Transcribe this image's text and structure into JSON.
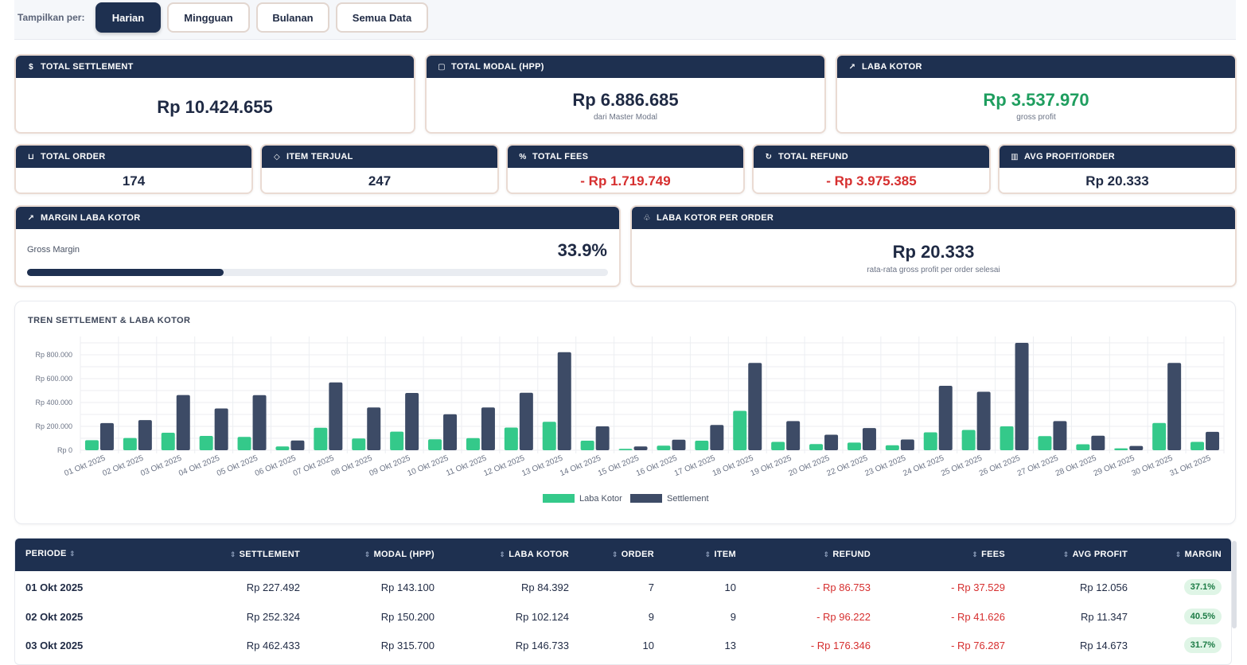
{
  "filter": {
    "label": "Tampilkan per:",
    "options": [
      "Harian",
      "Mingguan",
      "Bulanan",
      "Semua Data"
    ],
    "active": "Harian"
  },
  "cards": {
    "settlement": {
      "title": "TOTAL SETTLEMENT",
      "value": "Rp 10.424.655",
      "icon": "dollar-circle-icon"
    },
    "modal": {
      "title": "TOTAL MODAL (HPP)",
      "value": "Rp 6.886.685",
      "sub": "dari Master Modal",
      "icon": "box-icon"
    },
    "laba": {
      "title": "LABA KOTOR",
      "value": "Rp 3.537.970",
      "sub": "gross profit",
      "icon": "trend-up-icon"
    },
    "order": {
      "title": "TOTAL ORDER",
      "value": "174",
      "icon": "cart-icon"
    },
    "item": {
      "title": "ITEM TERJUAL",
      "value": "247",
      "icon": "tag-icon"
    },
    "fees": {
      "title": "TOTAL FEES",
      "value": "- Rp 1.719.749",
      "icon": "percent-icon"
    },
    "refund": {
      "title": "TOTAL REFUND",
      "value": "- Rp 3.975.385",
      "icon": "refresh-icon"
    },
    "avg": {
      "title": "AVG PROFIT/ORDER",
      "value": "Rp 20.333",
      "icon": "bar-chart-icon"
    },
    "margin": {
      "title": "MARGIN LABA KOTOR",
      "label": "Gross Margin",
      "value": "33.9%",
      "fraction": 0.339,
      "icon": "trend-up-icon"
    },
    "perorder": {
      "title": "LABA KOTOR PER ORDER",
      "value": "Rp 20.333",
      "sub": "rata-rata gross profit per order selesai",
      "icon": "hand-coin-icon"
    }
  },
  "colors": {
    "navy": "#1e3050",
    "laba": "#34c98a",
    "settlement": "#3d4b66",
    "red": "#d62f2f",
    "green": "#1f9e5f"
  },
  "chart_data": {
    "type": "bar",
    "title": "TREN SETTLEMENT & LABA KOTOR",
    "categories": [
      "01 Okt 2025",
      "02 Okt 2025",
      "03 Okt 2025",
      "04 Okt 2025",
      "05 Okt 2025",
      "06 Okt 2025",
      "07 Okt 2025",
      "08 Okt 2025",
      "09 Okt 2025",
      "10 Okt 2025",
      "11 Okt 2025",
      "12 Okt 2025",
      "13 Okt 2025",
      "14 Okt 2025",
      "15 Okt 2025",
      "16 Okt 2025",
      "17 Okt 2025",
      "18 Okt 2025",
      "19 Okt 2025",
      "20 Okt 2025",
      "22 Okt 2025",
      "23 Okt 2025",
      "24 Okt 2025",
      "25 Okt 2025",
      "26 Okt 2025",
      "27 Okt 2025",
      "28 Okt 2025",
      "29 Okt 2025",
      "30 Okt 2025",
      "31 Okt 2025"
    ],
    "series": [
      {
        "name": "Laba Kotor",
        "color": "#34c98a",
        "values": [
          84392,
          102124,
          146733,
          120000,
          112000,
          32000,
          188000,
          98000,
          156000,
          92000,
          102000,
          190000,
          238000,
          80000,
          12000,
          38000,
          80000,
          330000,
          70000,
          52000,
          64000,
          42000,
          150000,
          170000,
          200000,
          118000,
          50000,
          16000,
          228000,
          70000
        ]
      },
      {
        "name": "Settlement",
        "color": "#3d4b66",
        "values": [
          227492,
          252324,
          462433,
          350000,
          462000,
          82000,
          568000,
          358000,
          480000,
          302000,
          358000,
          482000,
          822000,
          200000,
          32000,
          88000,
          212000,
          732000,
          244000,
          130000,
          186000,
          90000,
          540000,
          490000,
          900000,
          244000,
          122000,
          36000,
          732000,
          154000
        ]
      }
    ],
    "ylim": [
      0,
      900000
    ],
    "yticks": [
      "Rp 0",
      "Rp 200.000",
      "Rp 400.000",
      "Rp 600.000",
      "Rp 800.000"
    ],
    "ytick_values": [
      0,
      200000,
      400000,
      600000,
      800000
    ],
    "legend": "bottom-center"
  },
  "table": {
    "headers": [
      "PERIODE",
      "SETTLEMENT",
      "MODAL (HPP)",
      "LABA KOTOR",
      "ORDER",
      "ITEM",
      "REFUND",
      "FEES",
      "AVG PROFIT",
      "MARGIN"
    ],
    "rows": [
      [
        "01 Okt 2025",
        "Rp 227.492",
        "Rp 143.100",
        "Rp 84.392",
        "7",
        "10",
        "- Rp 86.753",
        "- Rp 37.529",
        "Rp 12.056",
        "37.1%"
      ],
      [
        "02 Okt 2025",
        "Rp 252.324",
        "Rp 150.200",
        "Rp 102.124",
        "9",
        "9",
        "- Rp 96.222",
        "- Rp 41.626",
        "Rp 11.347",
        "40.5%"
      ],
      [
        "03 Okt 2025",
        "Rp 462.433",
        "Rp 315.700",
        "Rp 146.733",
        "10",
        "13",
        "- Rp 176.346",
        "- Rp 76.287",
        "Rp 14.673",
        "31.7%"
      ]
    ]
  }
}
